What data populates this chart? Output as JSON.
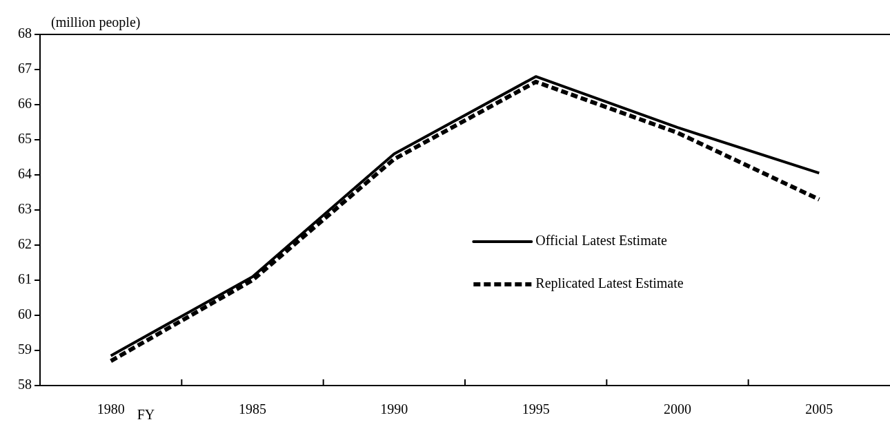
{
  "chart_data": {
    "type": "line",
    "ylabel": "(million people)",
    "xlabel": "FY",
    "categories": [
      "1980",
      "1985",
      "1990",
      "1995",
      "2000",
      "2005"
    ],
    "ylim": [
      58,
      68
    ],
    "yticks": [
      58,
      59,
      60,
      61,
      62,
      63,
      64,
      65,
      66,
      67,
      68
    ],
    "grid": false,
    "legend": "right",
    "marker": "none",
    "series": [
      {
        "name": "Official Latest Estimate",
        "color": "#000000",
        "line_style": "solid",
        "values": [
          58.85,
          61.1,
          64.6,
          66.8,
          65.35,
          64.05
        ]
      },
      {
        "name": "Replicated Latest Estimate",
        "color": "#000000",
        "line_style": "dashed",
        "values": [
          58.7,
          61.0,
          64.45,
          66.65,
          65.2,
          63.3
        ]
      }
    ]
  }
}
